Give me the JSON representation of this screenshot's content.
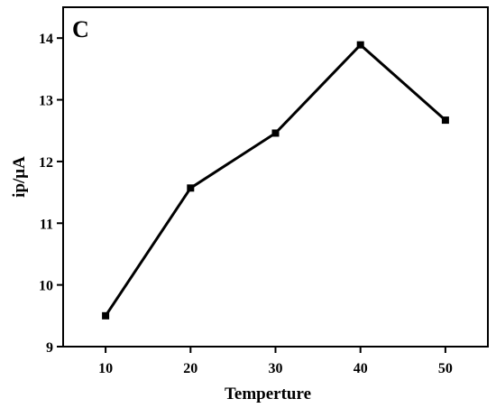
{
  "chart_data": {
    "type": "line",
    "panel_label": "C",
    "xlabel": "Temperture",
    "ylabel": "ip/μA",
    "x": [
      10,
      20,
      30,
      40,
      50
    ],
    "series": [
      {
        "values": [
          9.5,
          11.57,
          12.46,
          13.89,
          12.67
        ]
      }
    ],
    "xlim": [
      5,
      55
    ],
    "ylim": [
      9,
      14.5
    ],
    "xticks": [
      10,
      20,
      30,
      40,
      50
    ],
    "yticks": [
      9,
      10,
      11,
      12,
      13,
      14
    ],
    "grid": false,
    "marker": "square",
    "line_color": "#000000"
  }
}
